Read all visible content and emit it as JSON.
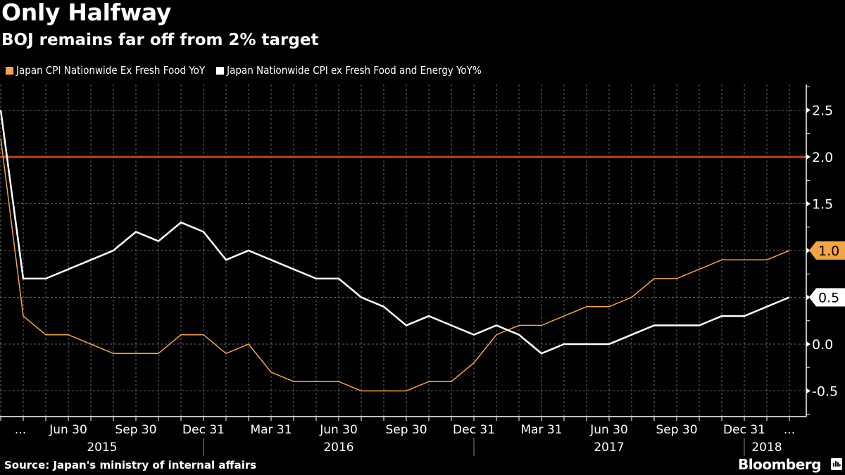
{
  "header": {
    "title": "Only Halfway",
    "subtitle": "BOJ remains far off from 2% target"
  },
  "footer": {
    "source": "Source: Japan's ministry of internal affairs",
    "brand": "Bloomberg",
    "brand_icon": "bloomberg-chart-icon"
  },
  "chart_data": {
    "type": "line",
    "title": "Only Halfway",
    "subtitle": "BOJ remains far off from 2% target",
    "xlabel": "",
    "ylabel": "",
    "ylim": [
      -0.8,
      2.8
    ],
    "y_ticks": [
      -0.5,
      0.0,
      0.5,
      1.0,
      1.5,
      2.0,
      2.5
    ],
    "y_tick_labels": [
      "-0.5",
      "0.0",
      "0.5",
      "1.0",
      "1.5",
      "2.0",
      "2.5"
    ],
    "y_axis_side": "right",
    "grid": true,
    "legend_position": "top-left",
    "x": [
      "Mar 2015",
      "Apr 2015",
      "May 2015",
      "Jun 2015",
      "Jul 2015",
      "Aug 2015",
      "Sep 2015",
      "Oct 2015",
      "Nov 2015",
      "Dec 2015",
      "Jan 2016",
      "Feb 2016",
      "Mar 2016",
      "Apr 2016",
      "May 2016",
      "Jun 2016",
      "Jul 2016",
      "Aug 2016",
      "Sep 2016",
      "Oct 2016",
      "Nov 2016",
      "Dec 2016",
      "Jan 2017",
      "Feb 2017",
      "Mar 2017",
      "Apr 2017",
      "May 2017",
      "Jun 2017",
      "Jul 2017",
      "Aug 2017",
      "Sep 2017",
      "Oct 2017",
      "Nov 2017",
      "Dec 2017",
      "Jan 2018",
      "Feb 2018"
    ],
    "x_tick_labels": [
      {
        "index": 0,
        "label": "..."
      },
      {
        "index": 3,
        "label": "Jun 30"
      },
      {
        "index": 6,
        "label": "Sep 30"
      },
      {
        "index": 9,
        "label": "Dec 31"
      },
      {
        "index": 12,
        "label": "Mar 31"
      },
      {
        "index": 15,
        "label": "Jun 30"
      },
      {
        "index": 18,
        "label": "Sep 30"
      },
      {
        "index": 21,
        "label": "Dec 31"
      },
      {
        "index": 24,
        "label": "Mar 31"
      },
      {
        "index": 27,
        "label": "Jun 30"
      },
      {
        "index": 30,
        "label": "Sep 30"
      },
      {
        "index": 33,
        "label": "Dec 31"
      },
      {
        "index": 35,
        "label": "..."
      }
    ],
    "year_labels": [
      {
        "label": "2015",
        "start": 0,
        "end": 9
      },
      {
        "label": "2016",
        "start": 9,
        "end": 21
      },
      {
        "label": "2017",
        "start": 21,
        "end": 33
      },
      {
        "label": "2018",
        "start": 33,
        "end": 35
      }
    ],
    "series": [
      {
        "name": "Japan CPI Nationwide Ex Fresh Food YoY",
        "color": "#f5a442",
        "last_value_label": "1.0",
        "values": [
          2.2,
          0.3,
          0.1,
          0.1,
          0.0,
          -0.1,
          -0.1,
          -0.1,
          0.1,
          0.1,
          -0.1,
          0.0,
          -0.3,
          -0.4,
          -0.4,
          -0.4,
          -0.5,
          -0.5,
          -0.5,
          -0.4,
          -0.4,
          -0.2,
          0.1,
          0.2,
          0.2,
          0.3,
          0.4,
          0.4,
          0.5,
          0.7,
          0.7,
          0.8,
          0.9,
          0.9,
          0.9,
          1.0
        ]
      },
      {
        "name": "Japan Nationwide CPI ex Fresh Food and Energy YoY%",
        "color": "#ffffff",
        "last_value_label": "0.5",
        "values": [
          2.5,
          0.7,
          0.7,
          0.8,
          0.9,
          1.0,
          1.2,
          1.1,
          1.3,
          1.2,
          0.9,
          1.0,
          0.9,
          0.8,
          0.7,
          0.7,
          0.5,
          0.4,
          0.2,
          0.3,
          0.2,
          0.1,
          0.2,
          0.1,
          -0.1,
          0.0,
          0.0,
          0.0,
          0.1,
          0.2,
          0.2,
          0.2,
          0.3,
          0.3,
          0.4,
          0.5
        ]
      }
    ],
    "reference_lines": [
      {
        "name": "BOJ 2% target",
        "value": 2.0,
        "color": "#c2440e"
      }
    ]
  }
}
